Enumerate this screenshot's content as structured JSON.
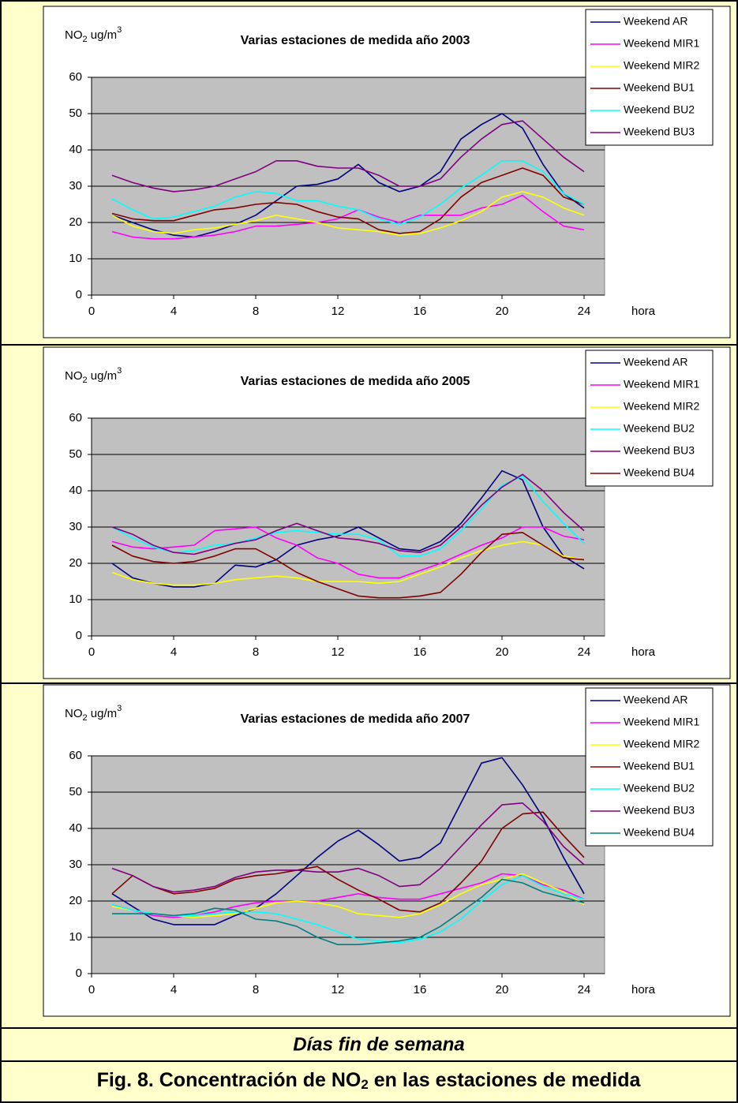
{
  "chart_data": [
    {
      "type": "line",
      "title": "Varias estaciones de medida año 2003",
      "y_label": [
        "NO",
        "2",
        " ug/m",
        "3"
      ],
      "x_label": "hora",
      "x": [
        1,
        2,
        3,
        4,
        5,
        6,
        7,
        8,
        9,
        10,
        11,
        12,
        13,
        14,
        15,
        16,
        17,
        18,
        19,
        20,
        21,
        22,
        23,
        24
      ],
      "xlim": [
        0,
        25
      ],
      "xticks": [
        0,
        4,
        8,
        12,
        16,
        20,
        24
      ],
      "ylim": [
        0,
        60
      ],
      "yticks": [
        0,
        10,
        20,
        30,
        40,
        50,
        60
      ],
      "grid": true,
      "legend": "right",
      "series": [
        {
          "name": "Weekend AR",
          "color": "#000080",
          "values": [
            22,
            20,
            18,
            16.5,
            16,
            17.5,
            19.5,
            22,
            26,
            30,
            30.5,
            32,
            36,
            31,
            28.5,
            30,
            34,
            43,
            47,
            50,
            46,
            36,
            28,
            24
          ]
        },
        {
          "name": "Weekend MIR1",
          "color": "#ff00ff",
          "values": [
            17.5,
            16,
            15.5,
            15.5,
            16,
            16.5,
            17.5,
            19,
            19,
            19.5,
            20,
            21,
            23.5,
            21.5,
            20,
            22,
            22,
            22,
            24,
            25,
            27.5,
            23,
            19,
            18
          ]
        },
        {
          "name": "Weekend MIR2",
          "color": "#ffff00",
          "values": [
            22,
            19,
            17.5,
            17,
            18,
            18.5,
            19.5,
            20.5,
            22,
            21,
            20,
            18.5,
            18,
            17.5,
            16.5,
            17,
            18.5,
            20.5,
            23,
            27,
            28.5,
            27,
            24,
            22
          ]
        },
        {
          "name": "Weekend BU1",
          "color": "#800000",
          "values": [
            22.5,
            21,
            20.5,
            20.5,
            22,
            23.5,
            24,
            25,
            25.5,
            25,
            23,
            21.5,
            21,
            18,
            17,
            17.5,
            21,
            27,
            31,
            33,
            35,
            33,
            27,
            25
          ]
        },
        {
          "name": "Weekend BU2",
          "color": "#00ffff",
          "values": [
            26.5,
            23.5,
            21,
            21.5,
            23,
            24.5,
            27,
            28.5,
            28,
            26,
            26,
            24.5,
            23.5,
            21,
            19.5,
            21.5,
            25,
            29.5,
            33,
            37,
            37,
            34,
            28,
            25
          ]
        },
        {
          "name": "Weekend BU3",
          "color": "#800080",
          "values": [
            33,
            31,
            29.5,
            28.5,
            29,
            30,
            32,
            34,
            37,
            37,
            35.5,
            35,
            35,
            33,
            30,
            30,
            32,
            38,
            43,
            47,
            48,
            43,
            38,
            34
          ]
        }
      ]
    },
    {
      "type": "line",
      "title": "Varias estaciones de medida año 2005",
      "y_label": [
        "NO",
        "2",
        " ug/m",
        "3"
      ],
      "x_label": "hora",
      "x": [
        1,
        2,
        3,
        4,
        5,
        6,
        7,
        8,
        9,
        10,
        11,
        12,
        13,
        14,
        15,
        16,
        17,
        18,
        19,
        20,
        21,
        22,
        23,
        24
      ],
      "xlim": [
        0,
        25
      ],
      "xticks": [
        0,
        4,
        8,
        12,
        16,
        20,
        24
      ],
      "ylim": [
        0,
        60
      ],
      "yticks": [
        0,
        10,
        20,
        30,
        40,
        50,
        60
      ],
      "grid": true,
      "legend": "right",
      "series": [
        {
          "name": "Weekend AR",
          "color": "#000080",
          "values": [
            20,
            16,
            14.5,
            13.5,
            13.5,
            14.5,
            19.5,
            19,
            21,
            25,
            26.5,
            27.5,
            30,
            27,
            24,
            23.5,
            26,
            31,
            38,
            45.5,
            43,
            30,
            22,
            18.5
          ]
        },
        {
          "name": "Weekend MIR1",
          "color": "#ff00ff",
          "values": [
            26,
            24.5,
            24,
            24.5,
            25,
            29,
            29.5,
            30,
            27,
            25,
            21.5,
            20,
            17,
            16,
            16,
            18,
            20,
            22.5,
            25,
            27,
            30,
            30,
            27.5,
            26.5
          ]
        },
        {
          "name": "Weekend MIR2",
          "color": "#ffff00",
          "values": [
            17.5,
            15.5,
            14.5,
            14,
            14,
            14.5,
            15.5,
            16,
            16.5,
            16,
            15,
            15,
            15,
            14.5,
            15,
            17,
            19,
            21.5,
            23.5,
            25,
            26,
            25,
            22,
            21
          ]
        },
        {
          "name": "Weekend BU2",
          "color": "#00ffff",
          "values": [
            30,
            27,
            24.5,
            23,
            23.5,
            25,
            25.5,
            27,
            28.5,
            29,
            28.5,
            28,
            28,
            26.5,
            22,
            22,
            24,
            29,
            35,
            41.5,
            44,
            37,
            31,
            25.5
          ]
        },
        {
          "name": "Weekend BU3",
          "color": "#800080",
          "values": [
            30,
            28,
            25,
            23,
            22.5,
            24,
            25.5,
            26.5,
            29,
            31,
            29,
            27,
            26.5,
            25.5,
            23.5,
            23,
            25,
            30,
            36,
            41,
            44.5,
            40,
            34,
            29
          ]
        },
        {
          "name": "Weekend BU4",
          "color": "#800000",
          "values": [
            25,
            22,
            20.5,
            20,
            20.5,
            22,
            24,
            24,
            21,
            17.5,
            15,
            13,
            11,
            10.5,
            10.5,
            11,
            12,
            17,
            23,
            28,
            28.5,
            25,
            21.5,
            21
          ]
        }
      ]
    },
    {
      "type": "line",
      "title": "Varias estaciones de medida año 2007",
      "y_label": [
        "NO",
        "2",
        " ug/m",
        "3"
      ],
      "x_label": "hora",
      "x": [
        1,
        2,
        3,
        4,
        5,
        6,
        7,
        8,
        9,
        10,
        11,
        12,
        13,
        14,
        15,
        16,
        17,
        18,
        19,
        20,
        21,
        22,
        23,
        24
      ],
      "xlim": [
        0,
        25
      ],
      "xticks": [
        0,
        4,
        8,
        12,
        16,
        20,
        24
      ],
      "ylim": [
        0,
        60
      ],
      "yticks": [
        0,
        10,
        20,
        30,
        40,
        50,
        60
      ],
      "grid": true,
      "legend": "right",
      "series": [
        {
          "name": "Weekend AR",
          "color": "#000080",
          "values": [
            22,
            18.5,
            15,
            13.5,
            13.5,
            13.5,
            16,
            18,
            22,
            27,
            32,
            36.5,
            39.5,
            35.5,
            31,
            32,
            36,
            47,
            58,
            59.5,
            52,
            43,
            32,
            22
          ]
        },
        {
          "name": "Weekend MIR1",
          "color": "#ff00ff",
          "values": [
            19,
            17.5,
            16,
            15.5,
            16,
            17,
            18.5,
            19.5,
            20,
            20,
            20,
            21,
            22,
            21,
            20.5,
            20.5,
            22,
            23.5,
            25,
            27.5,
            27,
            24.5,
            23,
            20.5
          ]
        },
        {
          "name": "Weekend MIR2",
          "color": "#ffff00",
          "values": [
            18.5,
            17.5,
            16.5,
            16,
            15.5,
            16,
            16.5,
            18,
            19.5,
            20,
            19.5,
            18.5,
            16.5,
            16,
            15.5,
            16.5,
            19,
            22,
            24.5,
            26,
            27.5,
            25,
            22.5,
            19
          ]
        },
        {
          "name": "Weekend BU1",
          "color": "#800000",
          "values": [
            22,
            27,
            24,
            22,
            22.5,
            23.5,
            26,
            27,
            27.5,
            28.5,
            29.5,
            26,
            23,
            20.5,
            17.5,
            17,
            19.5,
            25,
            31,
            40,
            44,
            44.5,
            38,
            32
          ]
        },
        {
          "name": "Weekend BU2",
          "color": "#00ffff",
          "values": [
            19,
            17.5,
            16.5,
            16,
            16,
            16.5,
            17,
            17,
            16.5,
            15,
            13.5,
            11.5,
            9.5,
            9,
            8.5,
            9.5,
            11.5,
            15,
            20,
            24.5,
            27,
            24,
            22,
            20.5
          ]
        },
        {
          "name": "Weekend BU3",
          "color": "#800080",
          "values": [
            29,
            27,
            24,
            22.5,
            23,
            24,
            26.5,
            28,
            28.5,
            28.5,
            28,
            28,
            29,
            27,
            24,
            24.5,
            29,
            35,
            41,
            46.5,
            47,
            42,
            35,
            30
          ]
        },
        {
          "name": "Weekend BU4",
          "color": "#008080",
          "values": [
            16.5,
            16.5,
            16.5,
            16,
            16.5,
            18,
            17.5,
            15,
            14.5,
            13,
            10,
            8,
            8,
            8.5,
            9,
            10,
            13,
            17,
            21,
            26,
            25,
            22.5,
            21,
            19.5
          ]
        }
      ]
    }
  ],
  "footer": {
    "label": "Días fin de semana",
    "caption": [
      "Fig. 8. Concentración de NO",
      "2",
      " en las estaciones de medida"
    ]
  }
}
